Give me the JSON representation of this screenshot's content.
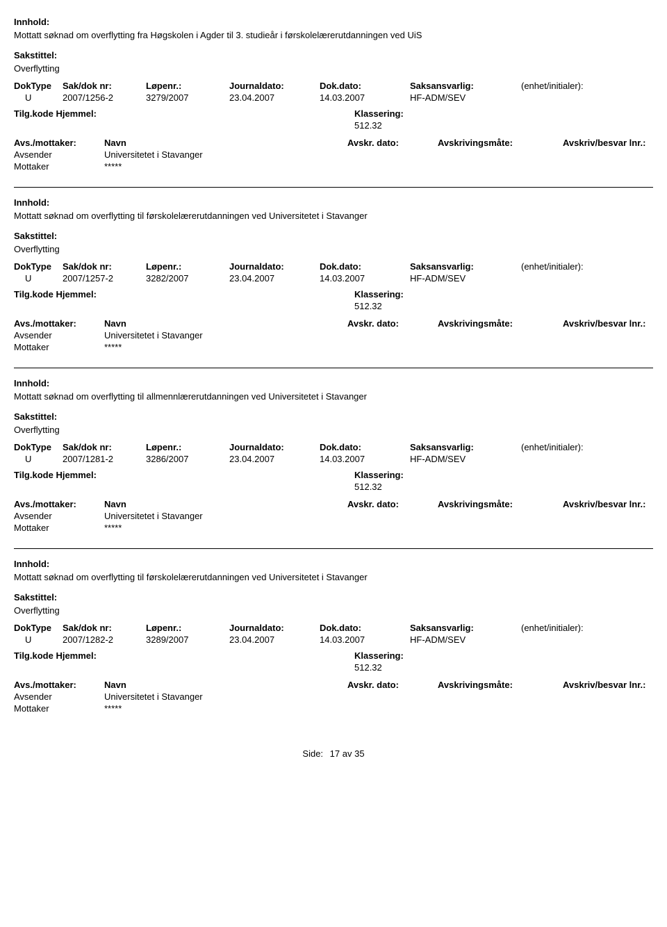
{
  "labels": {
    "innhold": "Innhold:",
    "sakstittel": "Sakstittel:",
    "doktype": "DokType",
    "sakdok": "Sak/dok nr:",
    "lopenr": "Løpenr.:",
    "journaldato": "Journaldato:",
    "dokdato": "Dok.dato:",
    "saksansvarlig": "Saksansvarlig:",
    "enhet": "(enhet/initialer):",
    "tilgkode": "Tilg.kode",
    "hjemmel": "Hjemmel:",
    "klassering": "Klassering:",
    "avsmottaker": "Avs./mottaker:",
    "navn": "Navn",
    "avskrdato": "Avskr. dato:",
    "avskrivmate": "Avskrivingsmåte:",
    "avskrivbesvar": "Avskriv/besvar lnr.:",
    "avsender": "Avsender",
    "mottaker": "Mottaker",
    "side": "Side:",
    "av": "av"
  },
  "footer": {
    "page": "17",
    "total": "35"
  },
  "records": [
    {
      "innhold": "Mottatt søknad om overflytting fra Høgskolen i Agder til 3. studieår i førskolelærerutdanningen ved UiS",
      "sakstittel": "Overflytting",
      "doktype": "U",
      "sakdok": "2007/1256-2",
      "lopenr": "3279/2007",
      "journaldato": "23.04.2007",
      "dokdato": "14.03.2007",
      "saksansvarlig": "HF-ADM/SEV",
      "klassering": "512.32",
      "avsender": "Universitetet i Stavanger",
      "mottaker": "*****"
    },
    {
      "innhold": "Mottatt søknad om overflytting til førskolelærerutdanningen ved Universitetet i Stavanger",
      "sakstittel": "Overflytting",
      "doktype": "U",
      "sakdok": "2007/1257-2",
      "lopenr": "3282/2007",
      "journaldato": "23.04.2007",
      "dokdato": "14.03.2007",
      "saksansvarlig": "HF-ADM/SEV",
      "klassering": "512.32",
      "avsender": "Universitetet i Stavanger",
      "mottaker": "*****"
    },
    {
      "innhold": "Mottatt søknad om overflytting til allmennlærerutdanningen ved Universitetet i Stavanger",
      "sakstittel": "Overflytting",
      "doktype": "U",
      "sakdok": "2007/1281-2",
      "lopenr": "3286/2007",
      "journaldato": "23.04.2007",
      "dokdato": "14.03.2007",
      "saksansvarlig": "HF-ADM/SEV",
      "klassering": "512.32",
      "avsender": "Universitetet i Stavanger",
      "mottaker": "*****"
    },
    {
      "innhold": "Mottatt søknad om overflytting til førskolelærerutdanningen ved Universitetet i Stavanger",
      "sakstittel": "Overflytting",
      "doktype": "U",
      "sakdok": "2007/1282-2",
      "lopenr": "3289/2007",
      "journaldato": "23.04.2007",
      "dokdato": "14.03.2007",
      "saksansvarlig": "HF-ADM/SEV",
      "klassering": "512.32",
      "avsender": "Universitetet i Stavanger",
      "mottaker": "*****"
    }
  ]
}
